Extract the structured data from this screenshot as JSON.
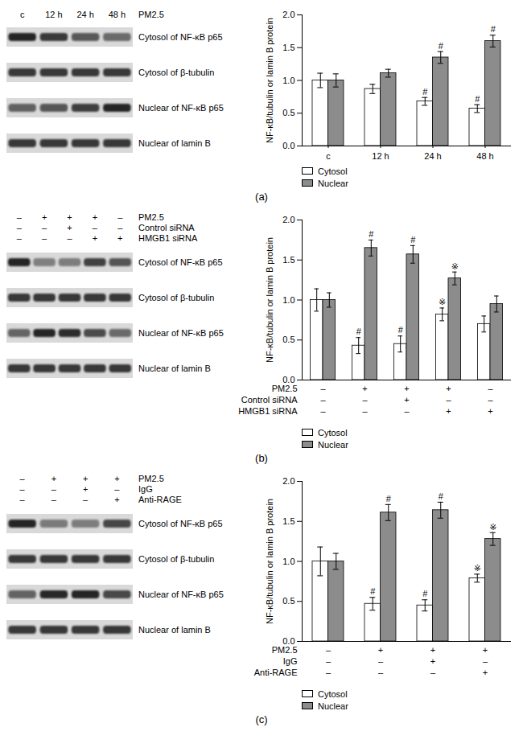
{
  "chart_data": [
    {
      "type": "bar",
      "y_label": "NF-κB/tubulin or lamin B protein",
      "categories": [
        "c",
        "12 h",
        "24 h",
        "48 h"
      ],
      "series": [
        {
          "name": "Cytosol",
          "color": "#ffffff",
          "values": [
            1.0,
            0.87,
            0.68,
            0.57
          ],
          "errors": [
            0.11,
            0.07,
            0.06,
            0.06
          ],
          "annotations": [
            null,
            null,
            "#",
            "#"
          ]
        },
        {
          "name": "Nuclear",
          "color": "#8c8c8c",
          "values": [
            1.0,
            1.11,
            1.35,
            1.6
          ],
          "errors": [
            0.1,
            0.06,
            0.09,
            0.09
          ],
          "annotations": [
            null,
            null,
            "#",
            "#"
          ]
        }
      ],
      "ylim": [
        0,
        2
      ],
      "yticks": [
        {
          "value": 0,
          "label": "0.0"
        },
        {
          "value": 0.5,
          "label": "0.5"
        },
        {
          "value": 1,
          "label": "1.0"
        },
        {
          "value": 1.5,
          "label": "1.5"
        },
        {
          "value": 2,
          "label": "2.0"
        }
      ],
      "legend": "bottom"
    },
    {
      "type": "bar",
      "y_label": "NF-κB/tubulin or lamin B protein",
      "categories": [
        null,
        null,
        null,
        null,
        null
      ],
      "conditions": [
        {
          "name": "PM2.5",
          "signs": [
            "–",
            "+",
            "+",
            "+",
            "–"
          ]
        },
        {
          "name": "Control siRNA",
          "signs": [
            "–",
            "–",
            "+",
            "–",
            "–"
          ]
        },
        {
          "name": "HMGB1 siRNA",
          "signs": [
            "–",
            "–",
            "–",
            "+",
            "+"
          ]
        }
      ],
      "series": [
        {
          "name": "Cytosol",
          "color": "#ffffff",
          "values": [
            1.0,
            0.43,
            0.45,
            0.82,
            0.7
          ],
          "errors": [
            0.14,
            0.1,
            0.1,
            0.08,
            0.1
          ],
          "annotations": [
            null,
            "#",
            "#",
            "※",
            null
          ]
        },
        {
          "name": "Nuclear",
          "color": "#8c8c8c",
          "values": [
            1.0,
            1.65,
            1.57,
            1.27,
            0.95
          ],
          "errors": [
            0.09,
            0.1,
            0.11,
            0.08,
            0.1
          ],
          "annotations": [
            null,
            "#",
            "#",
            "※",
            null
          ]
        }
      ],
      "ylim": [
        0,
        2
      ],
      "yticks": [
        {
          "value": 0,
          "label": "0.0"
        },
        {
          "value": 0.5,
          "label": "0.5"
        },
        {
          "value": 1,
          "label": "1.0"
        },
        {
          "value": 1.5,
          "label": "1.5"
        },
        {
          "value": 2,
          "label": "2.0"
        }
      ],
      "legend": "bottom"
    },
    {
      "type": "bar",
      "y_label": "NF-κB/tubulin or lamin B protein",
      "categories": [
        null,
        null,
        null,
        null
      ],
      "conditions": [
        {
          "name": "PM2.5",
          "signs": [
            "–",
            "+",
            "+",
            "+"
          ]
        },
        {
          "name": "IgG",
          "signs": [
            "–",
            "–",
            "+",
            "–"
          ]
        },
        {
          "name": "Anti-RAGE",
          "signs": [
            "–",
            "–",
            "–",
            "+"
          ]
        }
      ],
      "series": [
        {
          "name": "Cytosol",
          "color": "#ffffff",
          "values": [
            1.0,
            0.47,
            0.45,
            0.79
          ],
          "errors": [
            0.18,
            0.08,
            0.07,
            0.05
          ],
          "annotations": [
            null,
            "#",
            "#",
            "※"
          ]
        },
        {
          "name": "Nuclear",
          "color": "#8c8c8c",
          "values": [
            1.0,
            1.61,
            1.64,
            1.28
          ],
          "errors": [
            0.1,
            0.1,
            0.1,
            0.08
          ],
          "annotations": [
            null,
            "#",
            "#",
            "※"
          ]
        }
      ],
      "ylim": [
        0,
        2
      ],
      "yticks": [
        {
          "value": 0,
          "label": "0.0"
        },
        {
          "value": 0.5,
          "label": "0.5"
        },
        {
          "value": 1,
          "label": "1.0"
        },
        {
          "value": 1.5,
          "label": "1.5"
        },
        {
          "value": 2,
          "label": "2.0"
        }
      ],
      "legend": "bottom"
    }
  ],
  "blots": [
    {
      "columns": [
        "c",
        "12 h",
        "24 h",
        "48 h"
      ],
      "column_title": "PM2.5",
      "rows": [
        "Cytosol of NF-κB p65",
        "Cytosol of β-tubulin",
        "Nuclear of NF-κB p65",
        "Nuclear of lamin B"
      ]
    },
    {
      "conditions": [
        {
          "name": "PM2.5",
          "signs": [
            "–",
            "+",
            "+",
            "+",
            "–"
          ]
        },
        {
          "name": "Control siRNA",
          "signs": [
            "–",
            "–",
            "+",
            "–",
            "–"
          ]
        },
        {
          "name": "HMGB1 siRNA",
          "signs": [
            "–",
            "–",
            "–",
            "+",
            "+"
          ]
        }
      ],
      "rows": [
        "Cytosol of NF-κB p65",
        "Cytosol of β-tubulin",
        "Nuclear of NF-κB p65",
        "Nuclear of lamin B"
      ]
    },
    {
      "conditions": [
        {
          "name": "PM2.5",
          "signs": [
            "–",
            "+",
            "+",
            "+"
          ]
        },
        {
          "name": "IgG",
          "signs": [
            "–",
            "–",
            "+",
            "–"
          ]
        },
        {
          "name": "Anti-RAGE",
          "signs": [
            "–",
            "–",
            "–",
            "+"
          ]
        }
      ],
      "rows": [
        "Cytosol of NF-κB p65",
        "Cytosol of β-tubulin",
        "Nuclear of NF-κB p65",
        "Nuclear of lamin B"
      ]
    }
  ],
  "panel_labels": [
    "(a)",
    "(b)",
    "(c)"
  ]
}
